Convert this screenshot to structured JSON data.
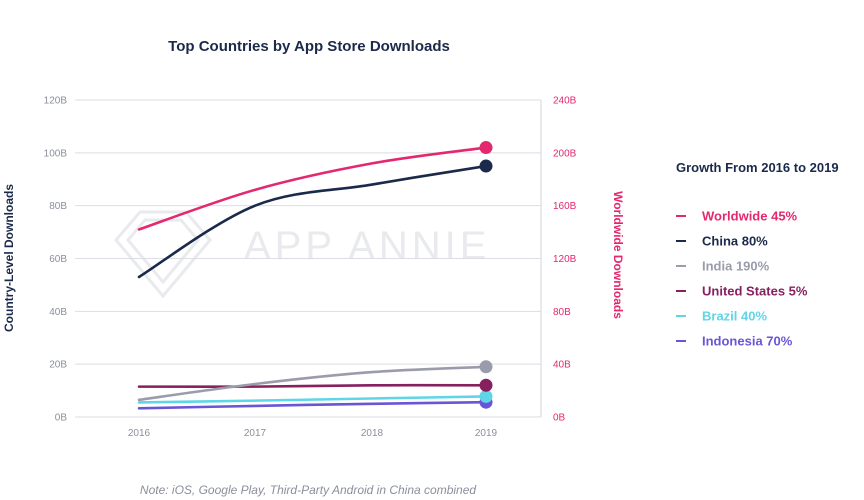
{
  "chart_data": {
    "type": "line",
    "title": "Top Countries by App Store Downloads",
    "x": [
      "2016",
      "2017",
      "2018",
      "2019"
    ],
    "y_left": {
      "label": "Country-Level Downloads",
      "ticks": [
        "0B",
        "20B",
        "40B",
        "60B",
        "80B",
        "100B",
        "120B"
      ],
      "range": [
        0,
        120
      ]
    },
    "y_right": {
      "label": "Worldwide Downloads",
      "ticks": [
        "0B",
        "40B",
        "80B",
        "120B",
        "160B",
        "200B",
        "240B"
      ],
      "range": [
        0,
        240
      ]
    },
    "grid": "horizontal",
    "legend_title": "Growth From 2016 to 2019",
    "legend_position": "right",
    "series": [
      {
        "name": "Worldwide",
        "growth": "45%",
        "label": "Worldwide 45%",
        "axis": "right",
        "color": "#e4286f",
        "values": [
          142,
          172,
          192,
          204
        ]
      },
      {
        "name": "China",
        "growth": "80%",
        "label": "China 80%",
        "axis": "left",
        "color": "#1b2a4a",
        "values": [
          53,
          80,
          88,
          95
        ]
      },
      {
        "name": "India",
        "growth": "190%",
        "label": "India 190%",
        "axis": "left",
        "color": "#9a9cab",
        "values": [
          6.5,
          12.5,
          17,
          19
        ]
      },
      {
        "name": "United States",
        "growth": "5%",
        "label": "United States 5%",
        "axis": "left",
        "color": "#86205f",
        "values": [
          11.5,
          11.5,
          12,
          12
        ]
      },
      {
        "name": "Brazil",
        "growth": "40%",
        "label": "Brazil 40%",
        "axis": "left",
        "color": "#5fd6e8",
        "values": [
          5.5,
          6.2,
          7,
          7.8
        ]
      },
      {
        "name": "Indonesia",
        "growth": "70%",
        "label": "Indonesia 70%",
        "axis": "left",
        "color": "#6a55d6",
        "values": [
          3.3,
          4.2,
          5,
          5.6
        ]
      }
    ],
    "watermark": "APP ANNIE",
    "note": "Note: iOS, Google Play, Third-Party Android in China combined"
  }
}
